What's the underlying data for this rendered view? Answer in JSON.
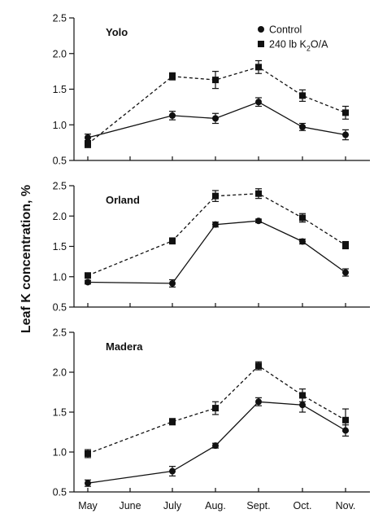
{
  "chart_data": {
    "type": "line",
    "ylabel": "Leaf K concentration, %",
    "x_categories": [
      "May",
      "June",
      "July",
      "Aug.",
      "Sept.",
      "Oct.",
      "Nov."
    ],
    "ylim": [
      0.5,
      2.5
    ],
    "yticks": [
      0.5,
      1.0,
      1.5,
      2.0,
      2.5
    ],
    "ytick_labels": [
      "0.5",
      "1.0",
      "1.5",
      "2.0",
      "2.5"
    ],
    "legend": {
      "placement": "top-right of first panel",
      "entries": [
        {
          "series": "Control",
          "label": "Control",
          "marker": "circle",
          "line": "solid"
        },
        {
          "series": "240 lb K2O/A",
          "label_parts": [
            "240 lb K",
            "2",
            "O/A"
          ],
          "marker": "square",
          "line": "dashed"
        }
      ]
    },
    "panels": [
      {
        "title": "Yolo",
        "series": [
          {
            "name": "Control",
            "x": [
              "May",
              "July",
              "Aug.",
              "Sept.",
              "Oct.",
              "Nov."
            ],
            "y": [
              0.82,
              1.13,
              1.09,
              1.32,
              0.97,
              0.86
            ],
            "err": [
              0.05,
              0.06,
              0.07,
              0.06,
              0.05,
              0.07
            ]
          },
          {
            "name": "240 lb K2O/A",
            "x": [
              "May",
              "July",
              "Aug.",
              "Sept.",
              "Oct.",
              "Nov."
            ],
            "y": [
              0.73,
              1.68,
              1.63,
              1.81,
              1.41,
              1.17
            ],
            "err": [
              0.05,
              0.05,
              0.12,
              0.09,
              0.08,
              0.09
            ]
          }
        ]
      },
      {
        "title": "Orland",
        "series": [
          {
            "name": "Control",
            "x": [
              "May",
              "July",
              "Aug.",
              "Sept.",
              "Oct.",
              "Nov."
            ],
            "y": [
              0.91,
              0.89,
              1.86,
              1.92,
              1.58,
              1.07
            ],
            "err": [
              0.03,
              0.06,
              0.04,
              0.03,
              0.04,
              0.06
            ]
          },
          {
            "name": "240 lb K2O/A",
            "x": [
              "May",
              "July",
              "Aug.",
              "Sept.",
              "Oct.",
              "Nov."
            ],
            "y": [
              1.02,
              1.59,
              2.33,
              2.37,
              1.97,
              1.52
            ],
            "err": [
              0.03,
              0.05,
              0.09,
              0.08,
              0.07,
              0.06
            ]
          }
        ]
      },
      {
        "title": "Madera",
        "series": [
          {
            "name": "Control",
            "x": [
              "May",
              "July",
              "Aug.",
              "Sept.",
              "Oct.",
              "Nov."
            ],
            "y": [
              0.61,
              0.76,
              1.08,
              1.63,
              1.59,
              1.27
            ],
            "err": [
              0.04,
              0.06,
              0.03,
              0.05,
              0.09,
              0.07
            ]
          },
          {
            "name": "240 lb K2O/A",
            "x": [
              "May",
              "July",
              "Aug.",
              "Sept.",
              "Oct.",
              "Nov."
            ],
            "y": [
              0.98,
              1.38,
              1.55,
              2.08,
              1.71,
              1.4
            ],
            "err": [
              0.05,
              0.04,
              0.08,
              0.05,
              0.08,
              0.14
            ]
          }
        ]
      }
    ]
  }
}
